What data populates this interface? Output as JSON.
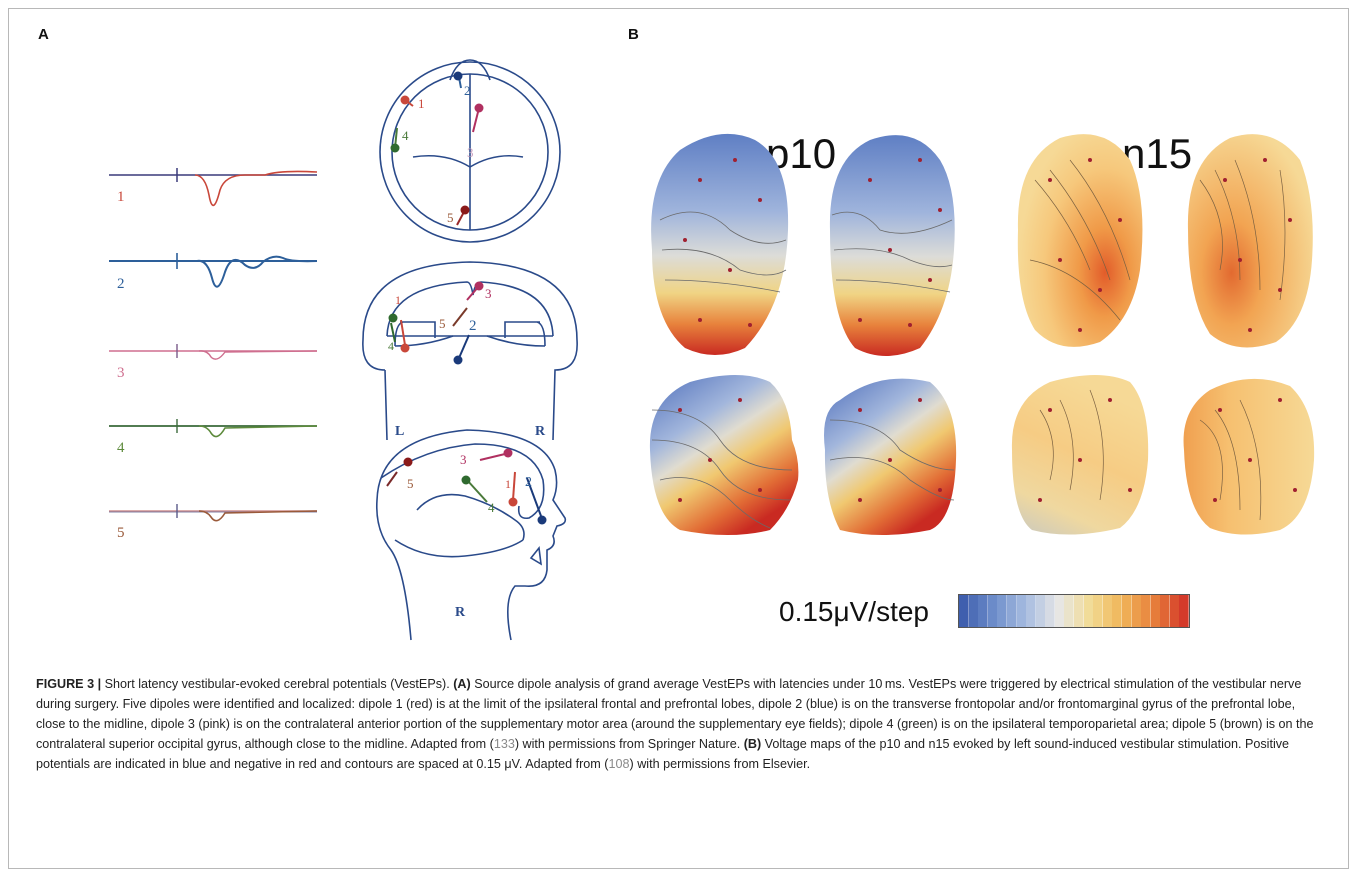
{
  "panel_a": {
    "letter": "A",
    "trace_labels": [
      "1",
      "2",
      "3",
      "4",
      "5"
    ],
    "trace_colors": [
      "#c9473a",
      "#2d5f9a",
      "#cf6f8f",
      "#5d8a3c",
      "#9a5a3a"
    ],
    "dipole_labels": [
      "1",
      "2",
      "3",
      "4",
      "5"
    ],
    "side_labels": {
      "left": "L",
      "right": "R",
      "lateral": "R"
    }
  },
  "panel_b": {
    "letter": "B",
    "map_titles": [
      "p10",
      "n15"
    ],
    "scale_label": "0.15μV/step",
    "colorbar_colors": [
      "#3f5fae",
      "#6f8fcc",
      "#a8bde0",
      "#e6e6e6",
      "#f2dc96",
      "#f0b65a",
      "#e8823c",
      "#d43a2a"
    ]
  },
  "caption": {
    "figure_label": "FIGURE 3 |",
    "intro": " Short latency vestibular-evoked cerebral potentials (VestEPs). ",
    "a_label": "(A)",
    "a_text": " Source dipole analysis of grand average VestEPs with latencies under 10 ms. VestEPs were triggered by electrical stimulation of the vestibular nerve during surgery. Five dipoles were identified and localized: dipole 1 (red) is at the limit of the ipsilateral frontal and prefrontal lobes, dipole 2 (blue) is on the transverse frontopolar and/or frontomarginal gyrus of the prefrontal lobe, close to the midline, dipole 3 (pink) is on the contralateral anterior portion of the supplementary motor area (around the supplementary eye fields); dipole 4 (green) is on the ipsilateral temporoparietal area; dipole 5 (brown) is on the contralateral superior occipital gyrus, although close to the midline. Adapted from (",
    "ref1": "133",
    "a_tail": ") with permissions from Springer Nature. ",
    "b_label": "(B)",
    "b_text": " Voltage maps of the p10 and n15 evoked by left sound-induced vestibular stimulation. Positive potentials are indicated in blue and negative in red and contours are spaced at 0.15 μV. Adapted from (",
    "ref2": "108",
    "b_tail": ") with permissions from Elsevier."
  }
}
